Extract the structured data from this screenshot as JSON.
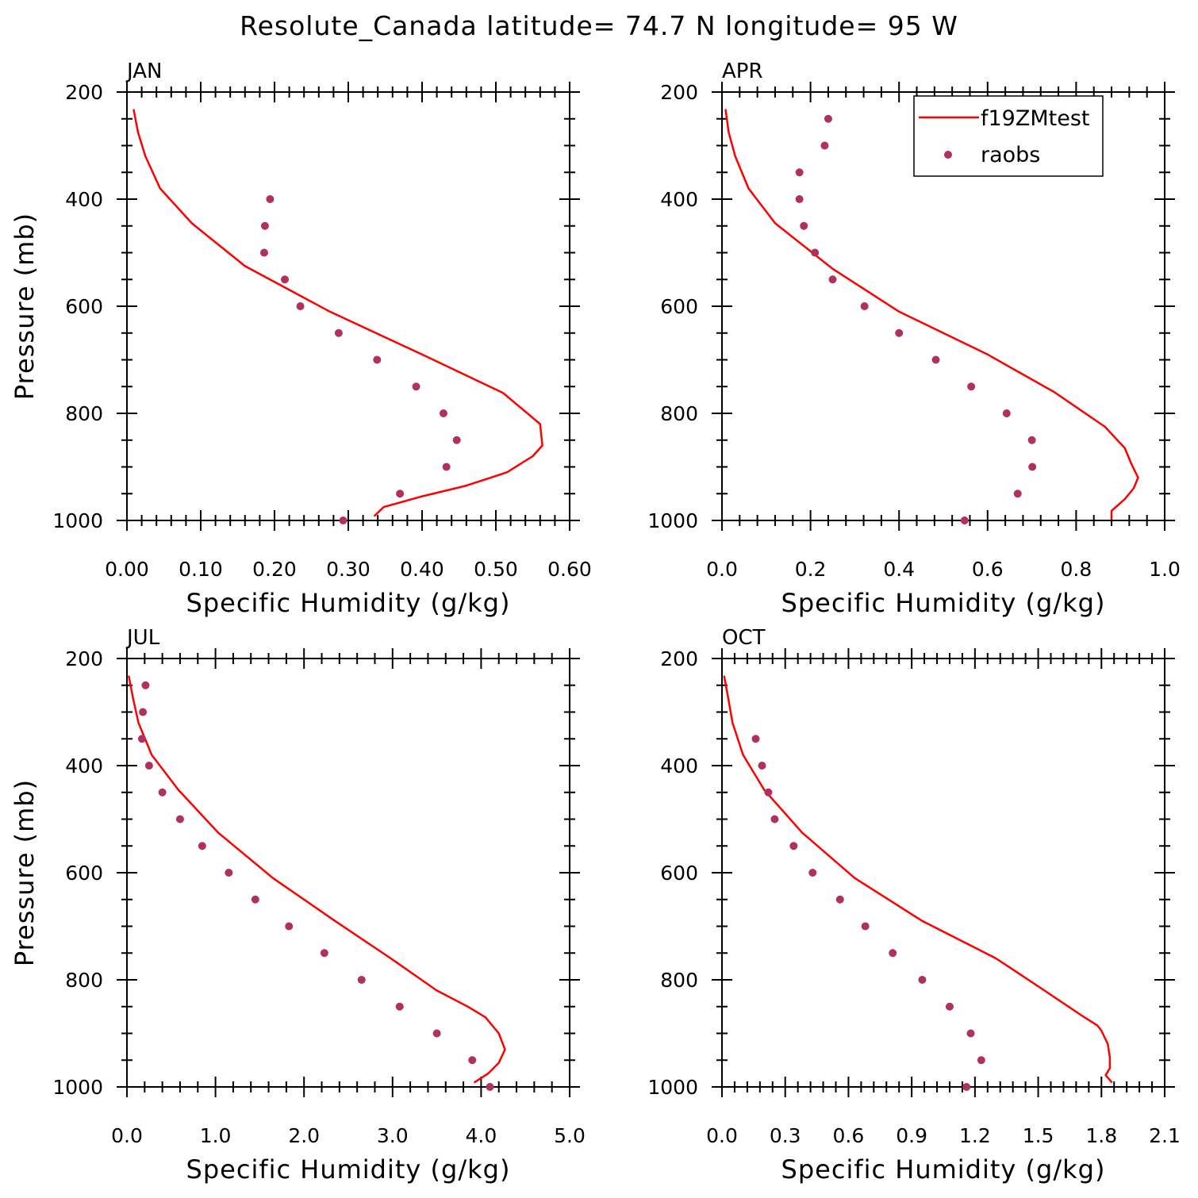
{
  "figure_title": "Resolute_Canada  latitude= 74.7 N longitude= 95 W",
  "legend": {
    "line_label": "f19ZMtest",
    "dots_label": "raobs"
  },
  "colors": {
    "model": "#ff0000",
    "obs": "#b03060",
    "axes": "#000000"
  },
  "chart_data": [
    {
      "type": "line",
      "title": "JAN",
      "xlabel": "Specific Humidity (g/kg)",
      "ylabel": "Pressure (mb)",
      "xlim": [
        0.0,
        0.6
      ],
      "ylim": [
        1000,
        200
      ],
      "xticks": [
        "0.00",
        "0.10",
        "0.20",
        "0.30",
        "0.40",
        "0.50",
        "0.60"
      ],
      "yticks": [
        "200",
        "400",
        "600",
        "800",
        "1000"
      ],
      "series": [
        {
          "name": "f19ZMtest",
          "kind": "line",
          "x": [
            0.335,
            0.348,
            0.4,
            0.46,
            0.515,
            0.55,
            0.563,
            0.56,
            0.51,
            0.4,
            0.275,
            0.16,
            0.088,
            0.045,
            0.025,
            0.015,
            0.009
          ],
          "y": [
            992,
            975,
            955,
            935,
            910,
            880,
            860,
            820,
            762,
            690,
            610,
            525,
            445,
            380,
            320,
            275,
            232
          ]
        },
        {
          "name": "raobs",
          "kind": "scatter",
          "x": [
            0.293,
            0.37,
            0.433,
            0.447,
            0.429,
            0.392,
            0.339,
            0.287,
            0.235,
            0.214,
            0.186,
            0.187,
            0.194
          ],
          "y": [
            1000,
            950,
            900,
            850,
            800,
            750,
            700,
            650,
            600,
            550,
            500,
            450,
            400
          ]
        }
      ]
    },
    {
      "type": "line",
      "title": "APR",
      "xlabel": "Specific Humidity (g/kg)",
      "ylabel": "",
      "xlim": [
        0.0,
        1.0
      ],
      "ylim": [
        1000,
        200
      ],
      "xticks": [
        "0.0",
        "0.2",
        "0.4",
        "0.6",
        "0.8",
        "1.0"
      ],
      "yticks": [
        "200",
        "400",
        "600",
        "800",
        "1000"
      ],
      "series": [
        {
          "name": "f19ZMtest",
          "kind": "line",
          "x": [
            0.88,
            0.88,
            0.91,
            0.93,
            0.94,
            0.925,
            0.91,
            0.865,
            0.75,
            0.6,
            0.4,
            0.25,
            0.12,
            0.06,
            0.03,
            0.015,
            0.008
          ],
          "y": [
            998,
            982,
            960,
            940,
            920,
            895,
            865,
            825,
            760,
            690,
            610,
            530,
            445,
            380,
            320,
            275,
            232
          ]
        },
        {
          "name": "raobs",
          "kind": "scatter",
          "x": [
            0.548,
            0.668,
            0.701,
            0.7,
            0.643,
            0.563,
            0.483,
            0.4,
            0.322,
            0.25,
            0.21,
            0.185,
            0.175,
            0.175,
            0.232,
            0.24
          ],
          "y": [
            1000,
            950,
            900,
            850,
            800,
            750,
            700,
            650,
            600,
            550,
            500,
            450,
            400,
            350,
            300,
            250
          ]
        }
      ]
    },
    {
      "type": "line",
      "title": "JUL",
      "xlabel": "Specific Humidity (g/kg)",
      "ylabel": "Pressure (mb)",
      "xlim": [
        0.0,
        5.0
      ],
      "ylim": [
        1000,
        200
      ],
      "xticks": [
        "0.0",
        "1.0",
        "2.0",
        "3.0",
        "4.0",
        "5.0"
      ],
      "yticks": [
        "200",
        "400",
        "600",
        "800",
        "1000"
      ],
      "series": [
        {
          "name": "f19ZMtest",
          "kind": "line",
          "x": [
            3.92,
            4.08,
            4.2,
            4.27,
            4.2,
            4.05,
            3.85,
            3.5,
            2.98,
            2.35,
            1.65,
            1.03,
            0.58,
            0.28,
            0.13,
            0.07,
            0.02
          ],
          "y": [
            992,
            975,
            955,
            930,
            900,
            870,
            850,
            820,
            760,
            690,
            610,
            525,
            445,
            380,
            320,
            275,
            232
          ]
        },
        {
          "name": "raobs",
          "kind": "scatter",
          "x": [
            4.1,
            3.9,
            3.5,
            3.08,
            2.65,
            2.23,
            1.83,
            1.45,
            1.15,
            0.85,
            0.6,
            0.4,
            0.25,
            0.17,
            0.18,
            0.21
          ],
          "y": [
            1000,
            950,
            900,
            850,
            800,
            750,
            700,
            650,
            600,
            550,
            500,
            450,
            400,
            350,
            300,
            250
          ]
        }
      ]
    },
    {
      "type": "line",
      "title": "OCT",
      "xlabel": "Specific Humidity (g/kg)",
      "ylabel": "",
      "xlim": [
        0.0,
        2.1
      ],
      "ylim": [
        1000,
        200
      ],
      "xticks": [
        "0.0",
        "0.3",
        "0.6",
        "0.9",
        "1.2",
        "1.5",
        "1.8",
        "2.1"
      ],
      "yticks": [
        "200",
        "400",
        "600",
        "800",
        "1000"
      ],
      "series": [
        {
          "name": "f19ZMtest",
          "kind": "line",
          "x": [
            1.85,
            1.82,
            1.84,
            1.84,
            1.83,
            1.8,
            1.78,
            1.7,
            1.53,
            1.3,
            0.95,
            0.63,
            0.38,
            0.2,
            0.1,
            0.05,
            0.03,
            0.01
          ],
          "y": [
            992,
            978,
            965,
            945,
            920,
            895,
            885,
            865,
            820,
            760,
            690,
            610,
            525,
            445,
            380,
            320,
            275,
            232
          ]
        },
        {
          "name": "raobs",
          "kind": "scatter",
          "x": [
            1.16,
            1.23,
            1.18,
            1.08,
            0.95,
            0.81,
            0.68,
            0.56,
            0.43,
            0.34,
            0.25,
            0.22,
            0.19,
            0.16
          ],
          "y": [
            1000,
            950,
            900,
            850,
            800,
            750,
            700,
            650,
            600,
            550,
            500,
            450,
            400,
            350
          ]
        }
      ]
    }
  ]
}
